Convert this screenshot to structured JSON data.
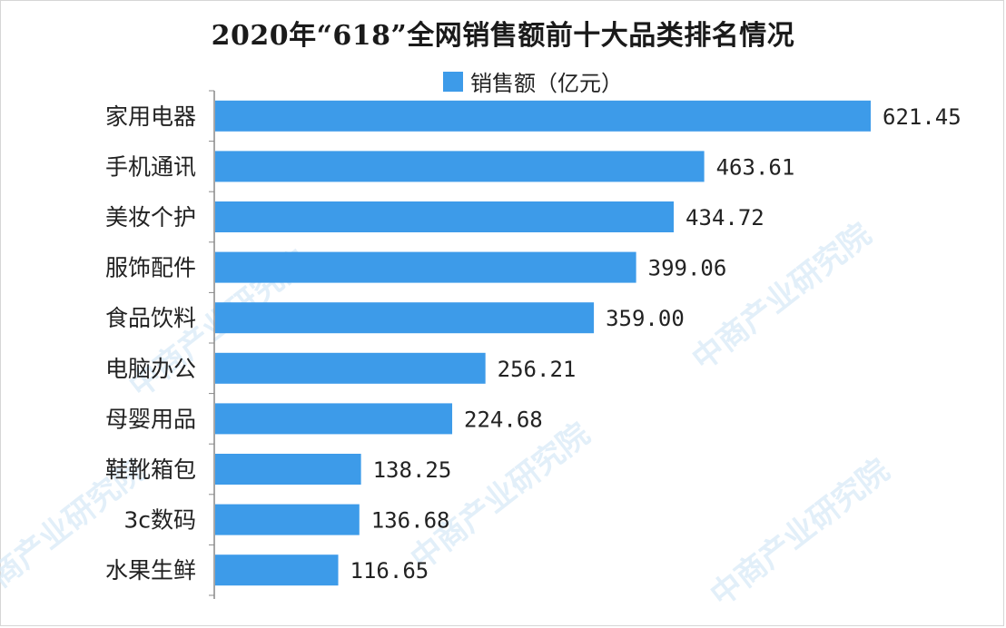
{
  "watermark": "中商产业研究院",
  "colors": {
    "bar": "#3d9be9",
    "axis": "#888888",
    "text": "#222222"
  },
  "chart_data": {
    "type": "bar",
    "orientation": "horizontal",
    "title": "2020年“618”全网销售额前十大品类排名情况",
    "legend_position": "top",
    "series": [
      {
        "name": "销售额（亿元）",
        "values": [
          621.45,
          463.61,
          434.72,
          399.06,
          359.0,
          256.21,
          224.68,
          138.25,
          136.68,
          116.65
        ]
      }
    ],
    "categories": [
      "家用电器",
      "手机通讯",
      "美妆个护",
      "服饰配件",
      "食品饮料",
      "电脑办公",
      "母婴用品",
      "鞋靴箱包",
      "3c数码",
      "水果生鲜"
    ],
    "value_labels": [
      "621.45",
      "463.61",
      "434.72",
      "399.06",
      "359.00",
      "256.21",
      "224.68",
      "138.25",
      "136.68",
      "116.65"
    ],
    "xlim": [
      0,
      621.45
    ],
    "grid": false
  }
}
